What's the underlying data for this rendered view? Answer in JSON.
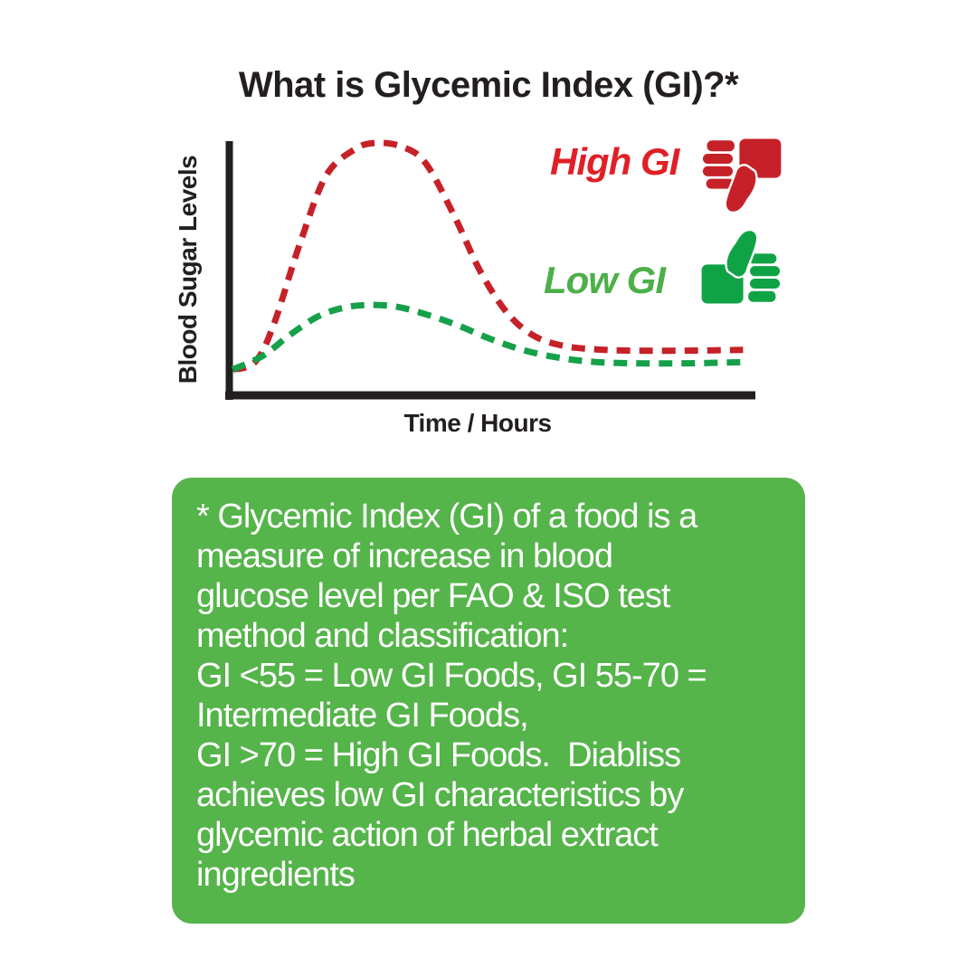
{
  "page": {
    "title": "What is Glycemic Index (GI)?*"
  },
  "chart_data": {
    "type": "line",
    "title": "",
    "xlabel": "Time / Hours",
    "ylabel": "Blood Sugar Levels",
    "x_axis": {
      "range_hours": [
        0,
        10
      ],
      "ticks": "none"
    },
    "y_axis": {
      "units": "relative blood sugar level, unlabeled",
      "range": [
        0,
        100
      ],
      "ticks": "none"
    },
    "grid": false,
    "legend_position": "right-of-plot",
    "series": [
      {
        "name": "High GI",
        "color": "#c62128",
        "line_style": "dashed",
        "x": [
          0.07,
          0.5,
          0.85,
          1.35,
          1.85,
          2.4,
          2.8,
          3.3,
          3.75,
          4.3,
          4.8,
          5.3,
          5.8,
          6.35,
          7.0,
          7.7,
          8.75,
          9.8
        ],
        "y": [
          10.5,
          13.5,
          28,
          60,
          87,
          97.5,
          100,
          98.5,
          92,
          71,
          49,
          33,
          24,
          20,
          18.5,
          18,
          18,
          18.3
        ]
      },
      {
        "name": "Low GI",
        "color": "#16a04a",
        "line_style": "dashed",
        "x": [
          0.07,
          0.65,
          1.15,
          1.7,
          2.2,
          2.65,
          3.15,
          3.65,
          4.3,
          5.0,
          5.65,
          6.35,
          7.0,
          7.7,
          8.75,
          9.9
        ],
        "y": [
          10.5,
          16,
          24,
          31.5,
          35,
          36,
          35.5,
          33,
          28.5,
          22.5,
          18,
          15,
          13.5,
          13,
          13,
          13.5
        ]
      }
    ]
  },
  "legend": {
    "high": {
      "label": "High GI",
      "icon": "thumbs-down"
    },
    "low": {
      "label": "Low GI",
      "icon": "thumbs-up"
    }
  },
  "infobox": {
    "text": "* Glycemic Index (GI) of a food is a\nmeasure of increase in blood\nglucose level per FAO & ISO test\nmethod and classification:\nGI <55 = Low GI Foods, GI 55-70 =\nIntermediate GI Foods,\nGI >70 = High GI Foods.  Diabliss\nachieves low GI characteristics by\nglycemic action of herbal extract\ningredients"
  },
  "colors": {
    "ink": "#231f20",
    "red_text": "#e01f26",
    "red_icon": "#c62128",
    "green_text": "#4daf4a",
    "green_icon": "#10a346",
    "box_green": "#55b44a",
    "box_text": "#ffffff"
  }
}
